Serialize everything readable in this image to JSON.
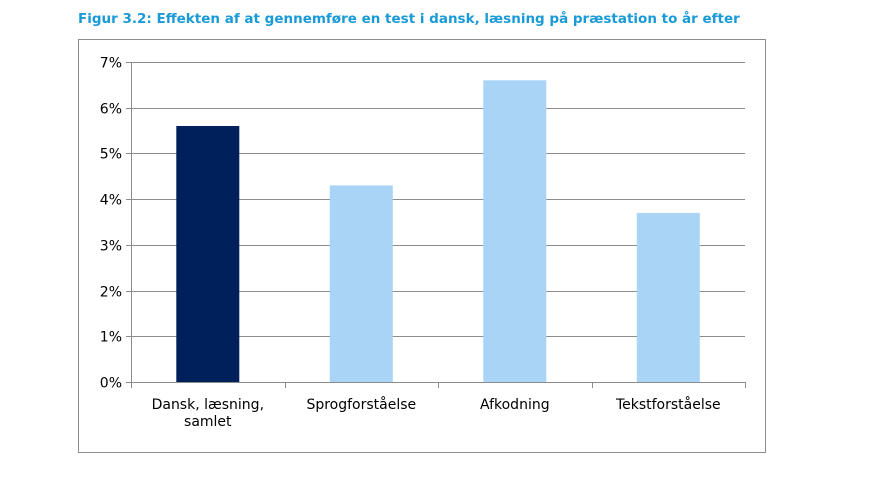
{
  "figure": {
    "title": "Figur 3.2: Effekten af at gennemføre en test i dansk, læsning på præstation to år efter"
  },
  "chart_data": {
    "type": "bar",
    "categories": [
      [
        "Dansk, læsning,",
        "samlet"
      ],
      [
        "Sprogforståelse"
      ],
      [
        "Afkodning"
      ],
      [
        "Tekstforståelse"
      ]
    ],
    "values": [
      5.6,
      4.3,
      6.6,
      3.7
    ],
    "bar_colors": [
      "#00205b",
      "#a9d4f5",
      "#a9d4f5",
      "#a9d4f5"
    ],
    "ylim": [
      0,
      7
    ],
    "yticks": [
      0,
      1,
      2,
      3,
      4,
      5,
      6,
      7
    ],
    "ytick_labels": [
      "0%",
      "1%",
      "2%",
      "3%",
      "4%",
      "5%",
      "6%",
      "7%"
    ],
    "grid": true,
    "legend": false,
    "xlabel": "",
    "ylabel": ""
  }
}
